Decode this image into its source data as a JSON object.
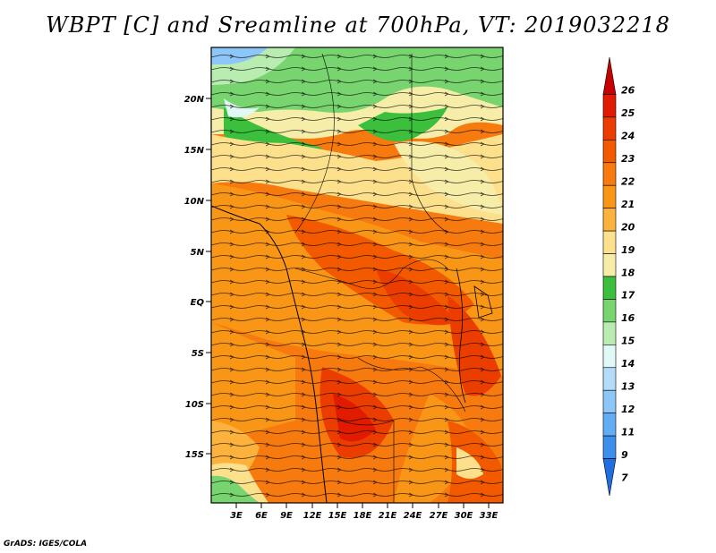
{
  "title": "WBPT [C] and Sreamline at 700hPa, VT: 2019032218",
  "credit": "GrADS: IGES/COLA",
  "map": {
    "variable": "Wet-bulb potential temperature",
    "units": "C",
    "level": "700hPa",
    "valid_time": "2019032218",
    "lat_labels": [
      "20N",
      "15N",
      "10N",
      "5N",
      "EQ",
      "5S",
      "10S",
      "15S"
    ],
    "lon_labels": [
      "3E",
      "6E",
      "9E",
      "12E",
      "15E",
      "18E",
      "21E",
      "24E",
      "27E",
      "30E",
      "33E"
    ]
  },
  "colorbar": {
    "levels": [
      "26",
      "25",
      "24",
      "23",
      "22",
      "21",
      "20",
      "19",
      "18",
      "17",
      "16",
      "15",
      "14",
      "13",
      "12",
      "11",
      "9",
      "7"
    ],
    "colors": [
      "#c70000",
      "#e01b00",
      "#ec3d00",
      "#f35a00",
      "#f77a0e",
      "#fa9616",
      "#fcb23c",
      "#fde08c",
      "#f6eda8",
      "#3cbf3c",
      "#78d46e",
      "#b9ecb0",
      "#e0f8f6",
      "#b3dcfb",
      "#8cc7f8",
      "#62adf3",
      "#3c90ec",
      "#1f6fe0"
    ]
  }
}
